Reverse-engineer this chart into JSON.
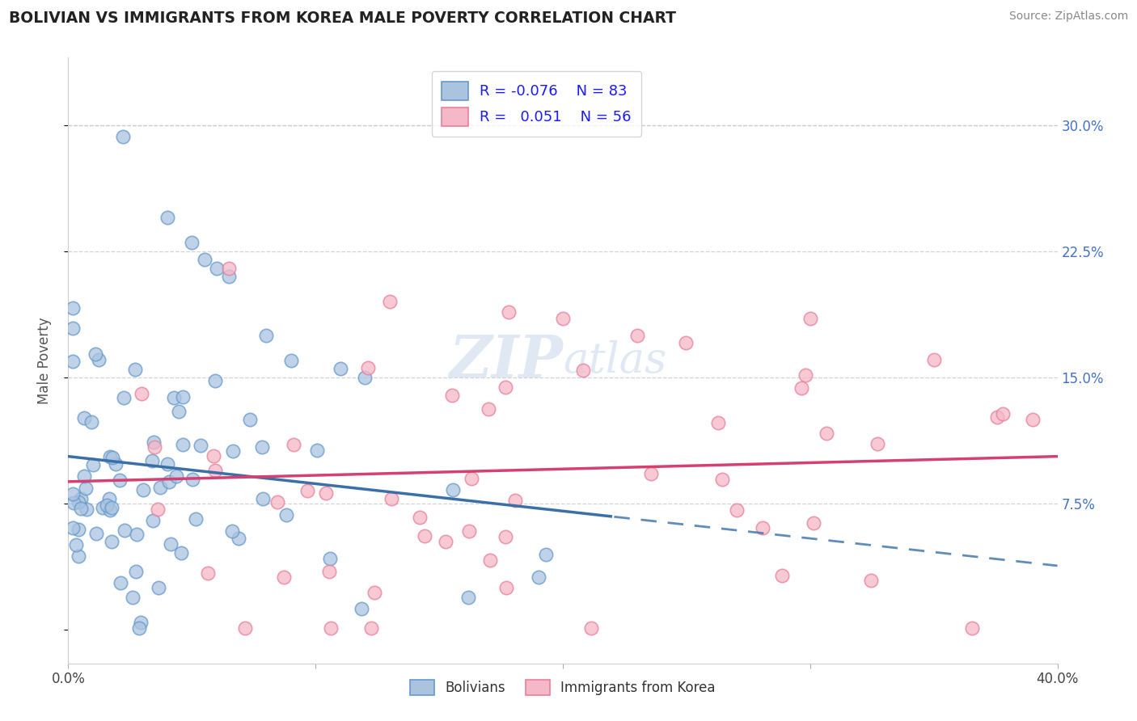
{
  "title": "BOLIVIAN VS IMMIGRANTS FROM KOREA MALE POVERTY CORRELATION CHART",
  "source": "Source: ZipAtlas.com",
  "ylabel": "Male Poverty",
  "xlim": [
    0.0,
    0.4
  ],
  "ylim": [
    -0.02,
    0.34
  ],
  "ytick_vals": [
    0.0,
    0.075,
    0.15,
    0.225,
    0.3
  ],
  "ytick_labels_right": [
    "",
    "7.5%",
    "15.0%",
    "22.5%",
    "30.0%"
  ],
  "xtick_vals": [
    0.0,
    0.1,
    0.2,
    0.3,
    0.4
  ],
  "xtick_labels": [
    "0.0%",
    "",
    "",
    "",
    "40.0%"
  ],
  "blue_color": "#6699cc",
  "pink_color": "#e87f9a",
  "blue_fill": "#aac4e0",
  "pink_fill": "#f5b8c8",
  "blue_line_color": "#3a6fa8",
  "pink_line_color": "#d44070",
  "watermark": "ZIPatlas",
  "background_color": "#ffffff",
  "grid_color": "#c8c8c8",
  "legend_R_blue": "-0.076",
  "legend_N_blue": "83",
  "legend_R_pink": "0.051",
  "legend_N_pink": "56",
  "label_blue": "Bolivians",
  "label_pink": "Immigrants from Korea"
}
